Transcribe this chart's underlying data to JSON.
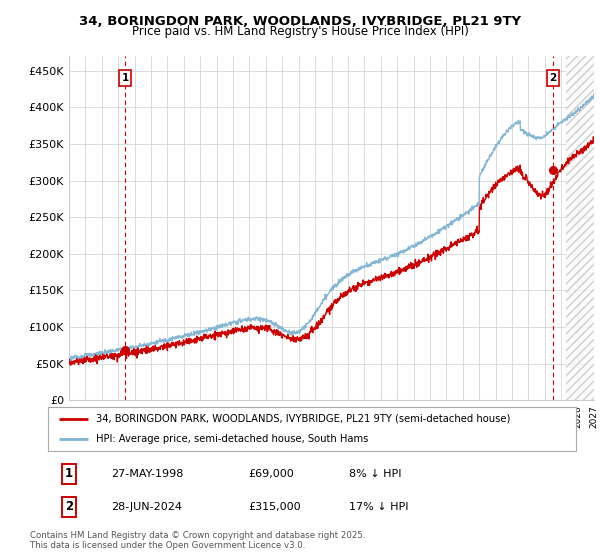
{
  "title1": "34, BORINGDON PARK, WOODLANDS, IVYBRIDGE, PL21 9TY",
  "title2": "Price paid vs. HM Land Registry's House Price Index (HPI)",
  "ylim": [
    0,
    470000
  ],
  "yticks": [
    0,
    50000,
    100000,
    150000,
    200000,
    250000,
    300000,
    350000,
    400000,
    450000
  ],
  "ytick_labels": [
    "£0",
    "£50K",
    "£100K",
    "£150K",
    "£200K",
    "£250K",
    "£300K",
    "£350K",
    "£400K",
    "£450K"
  ],
  "legend_entries": [
    "34, BORINGDON PARK, WOODLANDS, IVYBRIDGE, PL21 9TY (semi-detached house)",
    "HPI: Average price, semi-detached house, South Hams"
  ],
  "legend_colors": [
    "#cc0000",
    "#7fb3d3"
  ],
  "point1_date": "27-MAY-1998",
  "point1_price": "£69,000",
  "point1_hpi": "8% ↓ HPI",
  "point2_date": "28-JUN-2024",
  "point2_price": "£315,000",
  "point2_hpi": "17% ↓ HPI",
  "footer": "Contains HM Land Registry data © Crown copyright and database right 2025.\nThis data is licensed under the Open Government Licence v3.0.",
  "point1_x": 1998.41,
  "point1_y": 69000,
  "point2_x": 2024.49,
  "point2_y": 315000,
  "vline1_x": 1998.41,
  "vline2_x": 2024.49,
  "xlim": [
    1995,
    2027
  ],
  "background_color": "#ffffff",
  "grid_color": "#cccccc",
  "red_color": "#cc0000",
  "blue_color": "#7fb3d3",
  "hatch_start": 2025.3
}
